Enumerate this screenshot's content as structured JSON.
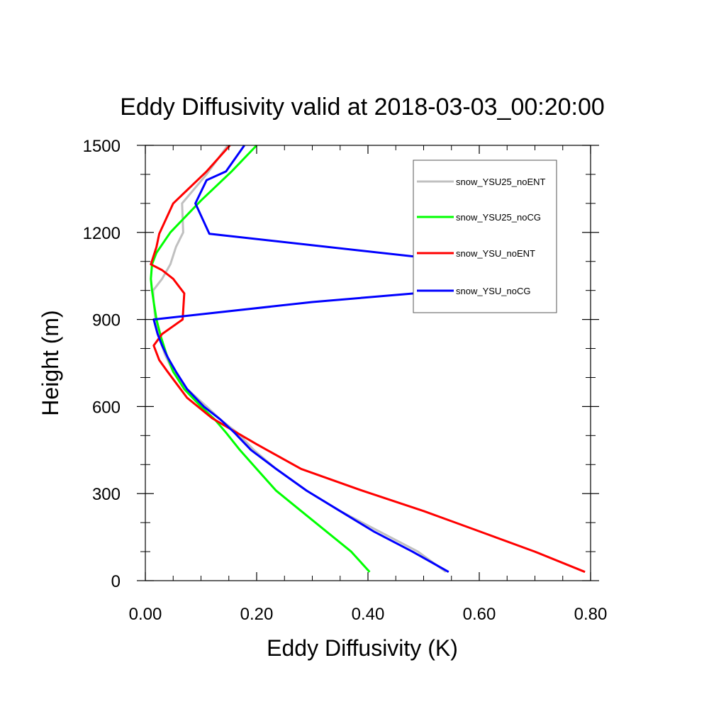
{
  "chart_data": {
    "type": "line",
    "title": "Eddy Diffusivity valid at 2018-03-03_00:20:00",
    "xlabel": "Eddy Diffusivity (K)",
    "ylabel": "Height (m)",
    "xlim": [
      0,
      0.8
    ],
    "ylim": [
      0,
      1500
    ],
    "xticks": [
      0,
      0.2,
      0.4,
      0.6,
      0.8
    ],
    "xtick_labels": [
      "0.00",
      "0.20",
      "0.40",
      "0.60",
      "0.80"
    ],
    "yticks": [
      0,
      300,
      600,
      900,
      1200,
      1500
    ],
    "ytick_labels": [
      "0",
      "300",
      "600",
      "900",
      "1200",
      "1500"
    ],
    "grid": false,
    "legend_position": "top-right",
    "series": [
      {
        "name": "snow_YSU25_noENT",
        "color": "#c0c0c0",
        "points": [
          [
            0.54,
            30
          ],
          [
            0.49,
            100
          ],
          [
            0.42,
            170
          ],
          [
            0.35,
            240
          ],
          [
            0.29,
            310
          ],
          [
            0.235,
            385
          ],
          [
            0.195,
            450
          ],
          [
            0.165,
            510
          ],
          [
            0.135,
            555
          ],
          [
            0.11,
            600
          ],
          [
            0.075,
            660
          ],
          [
            0.05,
            720
          ],
          [
            0.035,
            780
          ],
          [
            0.025,
            840
          ],
          [
            0.018,
            900
          ],
          [
            0.015,
            960
          ],
          [
            0.014,
            1000
          ],
          [
            0.03,
            1040
          ],
          [
            0.045,
            1090
          ],
          [
            0.055,
            1150
          ],
          [
            0.068,
            1200
          ],
          [
            0.066,
            1300
          ],
          [
            0.11,
            1400
          ],
          [
            0.148,
            1500
          ]
        ]
      },
      {
        "name": "snow_YSU25_noCG",
        "color": "#00ff00",
        "points": [
          [
            0.403,
            30
          ],
          [
            0.37,
            100
          ],
          [
            0.325,
            170
          ],
          [
            0.28,
            240
          ],
          [
            0.235,
            310
          ],
          [
            0.2,
            385
          ],
          [
            0.17,
            450
          ],
          [
            0.145,
            510
          ],
          [
            0.125,
            555
          ],
          [
            0.1,
            600
          ],
          [
            0.07,
            660
          ],
          [
            0.05,
            720
          ],
          [
            0.038,
            780
          ],
          [
            0.028,
            840
          ],
          [
            0.02,
            900
          ],
          [
            0.015,
            960
          ],
          [
            0.012,
            1000
          ],
          [
            0.01,
            1040
          ],
          [
            0.012,
            1090
          ],
          [
            0.02,
            1130
          ],
          [
            0.045,
            1200
          ],
          [
            0.075,
            1260
          ],
          [
            0.1,
            1310
          ],
          [
            0.155,
            1410
          ],
          [
            0.2,
            1500
          ]
        ]
      },
      {
        "name": "snow_YSU_noENT",
        "color": "#ff0000",
        "points": [
          [
            0.79,
            30
          ],
          [
            0.7,
            100
          ],
          [
            0.6,
            170
          ],
          [
            0.5,
            240
          ],
          [
            0.39,
            310
          ],
          [
            0.28,
            385
          ],
          [
            0.2,
            470
          ],
          [
            0.155,
            520
          ],
          [
            0.12,
            560
          ],
          [
            0.075,
            630
          ],
          [
            0.04,
            720
          ],
          [
            0.025,
            760
          ],
          [
            0.015,
            810
          ],
          [
            0.03,
            850
          ],
          [
            0.067,
            900
          ],
          [
            0.07,
            990
          ],
          [
            0.05,
            1040
          ],
          [
            0.03,
            1070
          ],
          [
            0.01,
            1090
          ],
          [
            0.02,
            1150
          ],
          [
            0.025,
            1195
          ],
          [
            0.05,
            1300
          ],
          [
            0.11,
            1410
          ],
          [
            0.152,
            1500
          ]
        ]
      },
      {
        "name": "snow_YSU_noCG",
        "color": "#0000ff",
        "points": [
          [
            0.545,
            30
          ],
          [
            0.48,
            100
          ],
          [
            0.41,
            170
          ],
          [
            0.35,
            240
          ],
          [
            0.29,
            310
          ],
          [
            0.235,
            385
          ],
          [
            0.19,
            450
          ],
          [
            0.16,
            510
          ],
          [
            0.135,
            555
          ],
          [
            0.105,
            600
          ],
          [
            0.075,
            660
          ],
          [
            0.055,
            720
          ],
          [
            0.04,
            770
          ],
          [
            0.03,
            810
          ],
          [
            0.022,
            850
          ],
          [
            0.015,
            900
          ],
          [
            0.3,
            960
          ],
          [
            0.545,
            1000
          ],
          [
            0.61,
            1090
          ],
          [
            0.115,
            1195
          ],
          [
            0.09,
            1300
          ],
          [
            0.11,
            1380
          ],
          [
            0.145,
            1410
          ],
          [
            0.178,
            1500
          ]
        ]
      }
    ]
  }
}
